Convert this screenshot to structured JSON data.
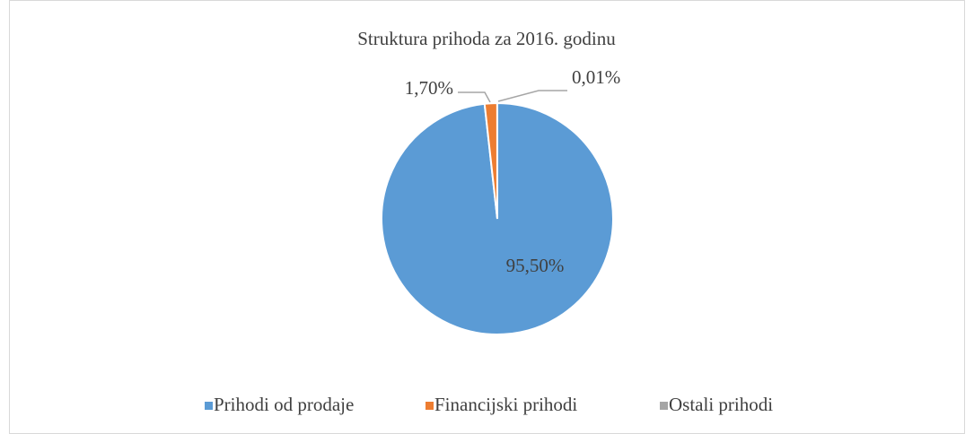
{
  "chart_data": {
    "type": "pie",
    "title": "Struktura prihoda za 2016. godinu",
    "categories": [
      "Prihodi od prodaje",
      "Financijski prihodi",
      "Ostali prihodi"
    ],
    "values": [
      95.5,
      1.7,
      0.01
    ],
    "value_labels": [
      "95,50%",
      "1,70%",
      "0,01%"
    ],
    "colors": [
      "#5b9bd5",
      "#ed7d31",
      "#a5a5a5"
    ],
    "legend": "bottom"
  }
}
